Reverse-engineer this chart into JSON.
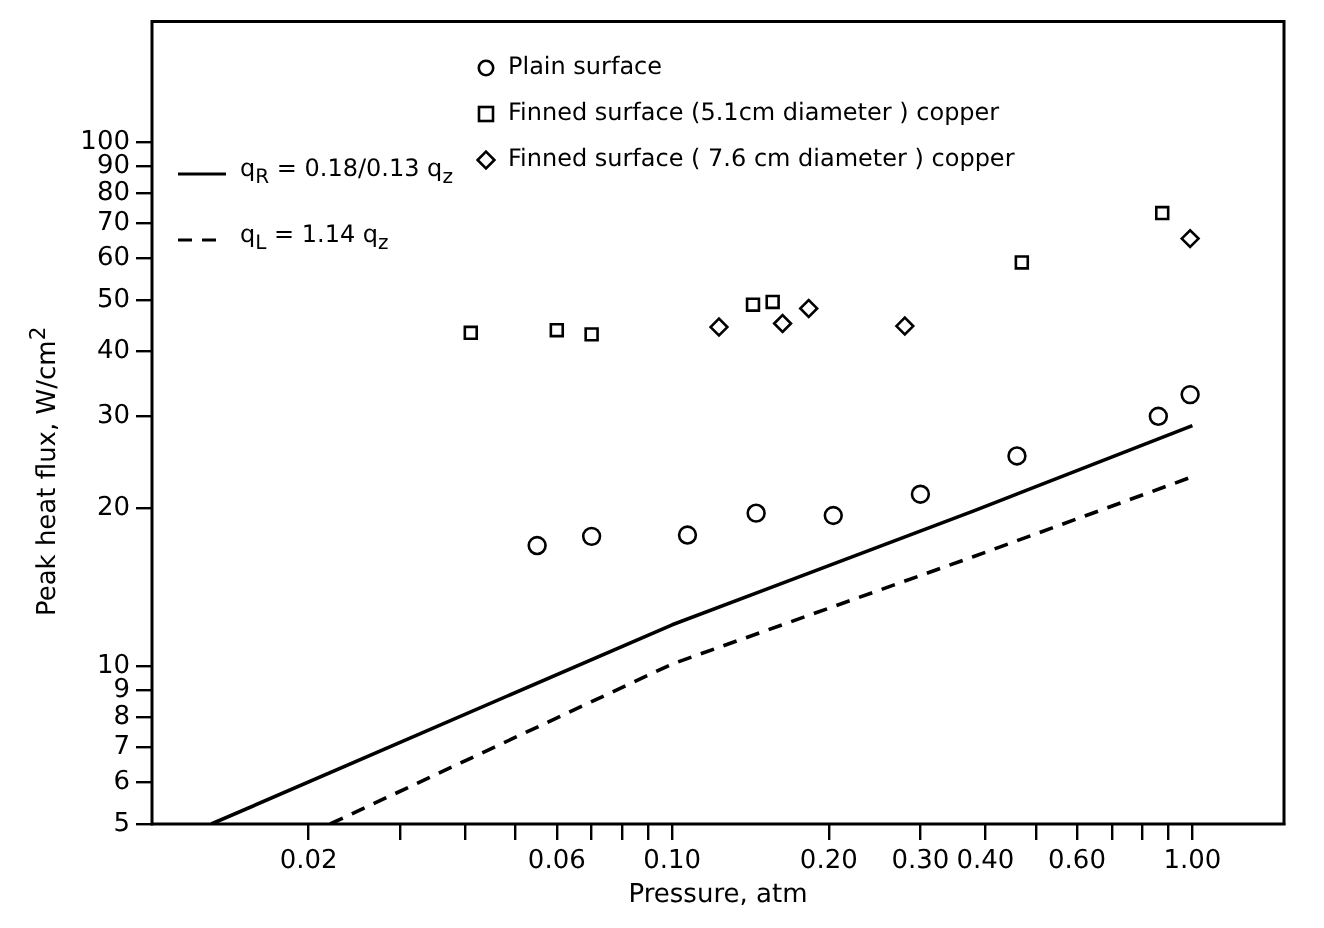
{
  "chart_data": {
    "type": "scatter",
    "xlabel": "Pressure, atm",
    "ylabel": "Peak heat flux, W/cm$^{2}$",
    "log": "xy",
    "xlim": [
      0.01,
      1.5
    ],
    "ylim": [
      5,
      170
    ],
    "xticks": [
      {
        "value": 0.02,
        "label": "0.02"
      },
      {
        "value": 0.03,
        "label": null
      },
      {
        "value": 0.04,
        "label": null
      },
      {
        "value": 0.05,
        "label": null
      },
      {
        "value": 0.06,
        "label": "0.06"
      },
      {
        "value": 0.07,
        "label": null
      },
      {
        "value": 0.08,
        "label": null
      },
      {
        "value": 0.09,
        "label": null
      },
      {
        "value": 0.1,
        "label": "0.10"
      },
      {
        "value": 0.2,
        "label": "0.20"
      },
      {
        "value": 0.3,
        "label": "0.30"
      },
      {
        "value": 0.4,
        "label": "0.40"
      },
      {
        "value": 0.5,
        "label": null
      },
      {
        "value": 0.6,
        "label": "0.60"
      },
      {
        "value": 0.7,
        "label": null
      },
      {
        "value": 0.8,
        "label": null
      },
      {
        "value": 0.9,
        "label": null
      },
      {
        "value": 1.0,
        "label": "1.00"
      }
    ],
    "yticks": [
      5,
      6,
      7,
      8,
      9,
      10,
      20,
      30,
      40,
      50,
      60,
      70,
      80,
      90,
      100
    ],
    "grid": false,
    "legend": "top left",
    "series": [
      {
        "name": "Plain surface",
        "marker": "circle",
        "color": "#000000",
        "x": [
          0.055,
          0.07,
          0.107,
          0.145,
          0.204,
          0.3,
          0.46,
          0.86,
          0.99
        ],
        "values": [
          17.0,
          17.7,
          17.8,
          19.6,
          19.4,
          21.3,
          25.2,
          30.0,
          33.0
        ]
      },
      {
        "name": "Finned surface  (5.1cm diameter ) copper",
        "marker": "square",
        "color": "#000000",
        "x": [
          0.041,
          0.06,
          0.07,
          0.143,
          0.156,
          0.47,
          0.875
        ],
        "values": [
          43.3,
          43.8,
          43.0,
          49.0,
          49.6,
          59.0,
          73.3
        ]
      },
      {
        "name": "Finned surface  ( 7.6 cm diameter ) copper",
        "marker": "diamond",
        "color": "#000000",
        "x": [
          0.123,
          0.163,
          0.183,
          0.28,
          0.99
        ],
        "values": [
          44.4,
          45.1,
          48.2,
          44.6,
          65.5
        ]
      },
      {
        "name": "q$_{R}$ = 0.18/0.13 q$_{z}$",
        "type": "line",
        "marker": "none",
        "line_style": "solid",
        "color": "#000000",
        "x": [
          0.013,
          0.1,
          0.38,
          1.0
        ],
        "values": [
          5,
          12.0,
          19.8,
          28.8
        ]
      },
      {
        "name": "q$_{L}$ = 1.14 q$_{z}$",
        "type": "line",
        "marker": "none",
        "line_style": "dashed",
        "color": "#000000",
        "x": [
          0.022,
          0.1,
          0.38,
          1.0
        ],
        "values": [
          5,
          10.1,
          16.2,
          23.0
        ]
      }
    ]
  }
}
